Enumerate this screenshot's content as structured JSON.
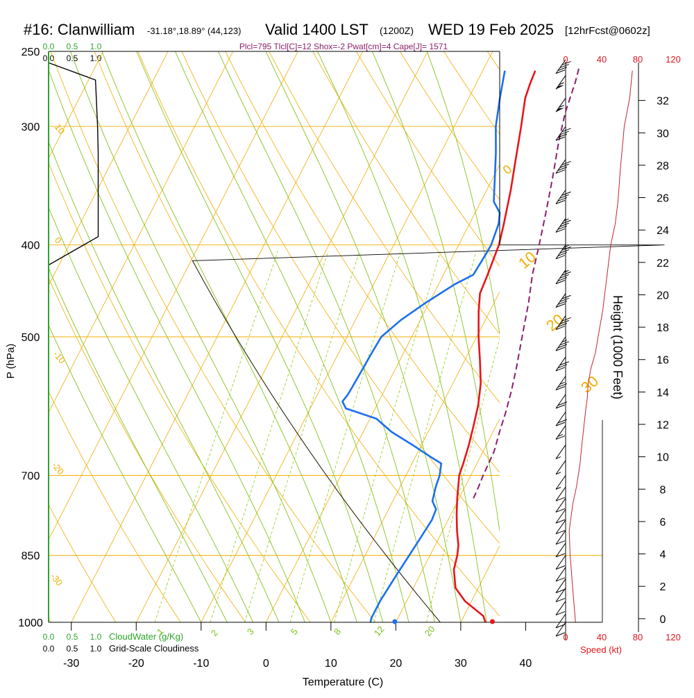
{
  "chart_data": {
    "type": "line",
    "header": {
      "station": "#16: Clanwilliam",
      "coords": "-31.18°,18.89° (44,123)",
      "valid": "Valid 1400 LST",
      "zulu": "(1200Z)",
      "date": "WED 19 Feb 2025",
      "forecast": "[12hrFcst@0602z]"
    },
    "indices": "Plcl=795 Tlcl[C]=12 Shox=-2 Pwat[cm]=4 Cape[J]= 1571",
    "xlabel": "Temperature (C)",
    "ylabel": "P (hPa)",
    "ylabel_right": "Height (1000 Feet)",
    "x_ticks": [
      "-30",
      "-20",
      "-10",
      "0",
      "10",
      "20",
      "30",
      "40"
    ],
    "x_tick_values": [
      -30,
      -20,
      -10,
      0,
      10,
      20,
      30,
      40
    ],
    "xlim": [
      -33.5,
      36
    ],
    "p_ticks": [
      "250",
      "300",
      "400",
      "500",
      "700",
      "850",
      "1000"
    ],
    "p_tick_values": [
      250,
      300,
      400,
      500,
      700,
      850,
      1000
    ],
    "ylim_hpa": [
      1000,
      250
    ],
    "log_pressure": true,
    "height_ticks": [
      "0",
      "2",
      "4",
      "6",
      "8",
      "10",
      "12",
      "14",
      "16",
      "18",
      "20",
      "22",
      "24",
      "26",
      "28",
      "30",
      "32"
    ],
    "height_tick_values": [
      0,
      2,
      4,
      6,
      8,
      10,
      12,
      14,
      16,
      18,
      20,
      22,
      24,
      26,
      28,
      30,
      32
    ],
    "height_range_kft": [
      -0.65,
      34.6
    ],
    "cloud_axis": {
      "top_green": [
        "0.0",
        "0.5",
        "1.0"
      ],
      "top_black": [
        "0.0",
        "0.5",
        "1.0"
      ],
      "bottom_green": [
        "0.0",
        "0.5",
        "1.0"
      ],
      "bottom_black": [
        "0.0",
        "0.5",
        "1.0"
      ],
      "label_green": "CloudWater (g/Kg)",
      "label_black": "Grid-Scale Cloudiness"
    },
    "speed_axis": {
      "ticks": [
        "0",
        "40",
        "80",
        "120"
      ],
      "label": "Speed (kt)"
    },
    "mixing_ratio_labels": [
      "1",
      "2",
      "3",
      "5",
      "8",
      "12",
      "20"
    ],
    "dry_adiabat_labels": [
      "10",
      "0",
      "-10",
      "-20",
      "-30"
    ],
    "moist_adiabat_labels": [
      "0",
      "10",
      "20",
      "30"
    ],
    "series": [
      {
        "name": "Temperature",
        "color": "#e8141b",
        "points": [
          [
            1000,
            33.8
          ],
          [
            985,
            33.0
          ],
          [
            970,
            31.3
          ],
          [
            950,
            29.0
          ],
          [
            920,
            26.5
          ],
          [
            880,
            24.8
          ],
          [
            850,
            24.2
          ],
          [
            830,
            23.6
          ],
          [
            800,
            22.2
          ],
          [
            770,
            20.9
          ],
          [
            740,
            19.7
          ],
          [
            710,
            18.6
          ],
          [
            700,
            18.2
          ],
          [
            680,
            17.9
          ],
          [
            650,
            17.3
          ],
          [
            620,
            16.5
          ],
          [
            590,
            15.6
          ],
          [
            560,
            14.3
          ],
          [
            530,
            12.4
          ],
          [
            500,
            10.3
          ],
          [
            470,
            8.3
          ],
          [
            450,
            7.1
          ],
          [
            430,
            6.8
          ],
          [
            410,
            6.4
          ],
          [
            400,
            6.2
          ],
          [
            380,
            5.3
          ],
          [
            350,
            3.7
          ],
          [
            330,
            2.4
          ],
          [
            300,
            0.3
          ],
          [
            280,
            -1.3
          ],
          [
            270,
            -1.7
          ],
          [
            262,
            -1.9
          ]
        ]
      },
      {
        "name": "Dewpoint",
        "color": "#1a6ff0",
        "points": [
          [
            1000,
            16.1
          ],
          [
            990,
            15.9
          ],
          [
            950,
            15.9
          ],
          [
            900,
            16.3
          ],
          [
            850,
            16.8
          ],
          [
            820,
            17.1
          ],
          [
            780,
            17.5
          ],
          [
            760,
            17.3
          ],
          [
            745,
            16.1
          ],
          [
            720,
            15.5
          ],
          [
            700,
            15.2
          ],
          [
            680,
            14.5
          ],
          [
            670,
            12.5
          ],
          [
            650,
            8.6
          ],
          [
            630,
            4.4
          ],
          [
            610,
            1.0
          ],
          [
            595,
            -4.5
          ],
          [
            585,
            -5.6
          ],
          [
            575,
            -5.3
          ],
          [
            550,
            -5.1
          ],
          [
            520,
            -4.9
          ],
          [
            500,
            -4.7
          ],
          [
            480,
            -3.0
          ],
          [
            460,
            -0.5
          ],
          [
            440,
            2.5
          ],
          [
            430,
            4.6
          ],
          [
            410,
            4.9
          ],
          [
            400,
            5.0
          ],
          [
            380,
            4.5
          ],
          [
            370,
            3.8
          ],
          [
            360,
            2.0
          ],
          [
            340,
            0.3
          ],
          [
            320,
            -1.5
          ],
          [
            300,
            -3.6
          ],
          [
            280,
            -5.2
          ],
          [
            262,
            -6.6
          ]
        ]
      },
      {
        "name": "Parcel",
        "color": "#8b1d6b",
        "points": [
          [
            740,
            22.2
          ],
          [
            720,
            22.1
          ],
          [
            700,
            21.9
          ],
          [
            660,
            21.7
          ],
          [
            630,
            21.0
          ],
          [
            600,
            20.4
          ],
          [
            570,
            19.6
          ],
          [
            540,
            18.6
          ],
          [
            500,
            17.0
          ],
          [
            460,
            15.3
          ],
          [
            430,
            13.7
          ],
          [
            400,
            12.4
          ],
          [
            370,
            10.9
          ],
          [
            340,
            9.2
          ],
          [
            310,
            7.2
          ],
          [
            290,
            6.0
          ],
          [
            270,
            5.2
          ],
          [
            260,
            4.6
          ]
        ]
      },
      {
        "name": "Cloudiness",
        "color": "#000000",
        "points": [
          [
            257,
            0.0
          ],
          [
            268,
            0.69
          ],
          [
            300,
            0.72
          ],
          [
            320,
            0.73
          ],
          [
            392,
            0.73
          ],
          [
            420,
            0.0
          ]
        ]
      },
      {
        "name": "Wind speed",
        "color": "#c0262c",
        "points": [
          [
            1000,
            11
          ],
          [
            950,
            9
          ],
          [
            850,
            5
          ],
          [
            800,
            4
          ],
          [
            750,
            8
          ],
          [
            720,
            12
          ],
          [
            700,
            14
          ],
          [
            690,
            15
          ],
          [
            680,
            16
          ],
          [
            650,
            18
          ],
          [
            600,
            22
          ],
          [
            580,
            24
          ],
          [
            560,
            25
          ],
          [
            540,
            28
          ],
          [
            520,
            33
          ],
          [
            500,
            36
          ],
          [
            470,
            41
          ],
          [
            430,
            46
          ],
          [
            400,
            50
          ],
          [
            380,
            55
          ],
          [
            360,
            58
          ],
          [
            330,
            61
          ],
          [
            300,
            65
          ],
          [
            280,
            71
          ],
          [
            262,
            74
          ]
        ]
      }
    ],
    "wind_barbs": [
      {
        "p": 1000,
        "kt": 10
      },
      {
        "p": 980,
        "kt": 10
      },
      {
        "p": 950,
        "kt": 10
      },
      {
        "p": 920,
        "kt": 10
      },
      {
        "p": 900,
        "kt": 10
      },
      {
        "p": 875,
        "kt": 10
      },
      {
        "p": 850,
        "kt": 10
      },
      {
        "p": 825,
        "kt": 10
      },
      {
        "p": 800,
        "kt": 10
      },
      {
        "p": 780,
        "kt": 10
      },
      {
        "p": 760,
        "kt": 10
      },
      {
        "p": 740,
        "kt": 10
      },
      {
        "p": 720,
        "kt": 10
      },
      {
        "p": 700,
        "kt": 5
      },
      {
        "p": 675,
        "kt": 5
      },
      {
        "p": 650,
        "kt": 5
      },
      {
        "p": 620,
        "kt": 15
      },
      {
        "p": 600,
        "kt": 20
      },
      {
        "p": 575,
        "kt": 20
      },
      {
        "p": 550,
        "kt": 25
      },
      {
        "p": 525,
        "kt": 30
      },
      {
        "p": 500,
        "kt": 35
      },
      {
        "p": 475,
        "kt": 40
      },
      {
        "p": 450,
        "kt": 40
      },
      {
        "p": 425,
        "kt": 45
      },
      {
        "p": 400,
        "kt": 45
      },
      {
        "p": 375,
        "kt": 45
      },
      {
        "p": 350,
        "kt": 40
      },
      {
        "p": 325,
        "kt": 40
      },
      {
        "p": 300,
        "kt": 40
      },
      {
        "p": 280,
        "kt": 55
      },
      {
        "p": 265,
        "kt": 55
      },
      {
        "p": 255,
        "kt": 40
      }
    ],
    "colors": {
      "isobar": "#f0ad00",
      "isotherm": "#f0ad00",
      "dry_adiabat": "#f0ad00",
      "moist_adiabat": "#86c11c",
      "mixing_ratio": "#9bd02a",
      "temperature": "#e8141b",
      "dewpoint": "#1a6ff0",
      "parcel": "#8b1d6b",
      "wind": "#c0262c",
      "cloud_green": "#2aa52a",
      "speed_axis": "#e0141b",
      "indices": "#8b1d6b"
    }
  }
}
